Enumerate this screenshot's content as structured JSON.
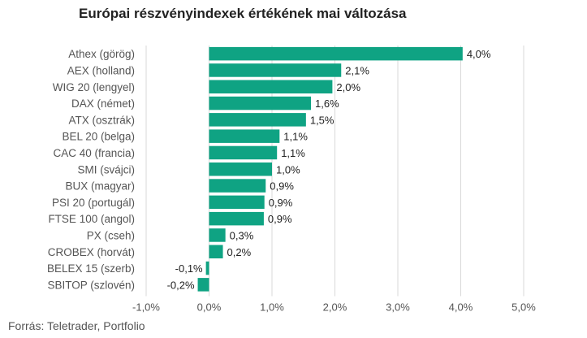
{
  "chart_data": {
    "type": "bar",
    "orientation": "horizontal",
    "title": "Európai részvényindexek értékének mai változása",
    "xlabel": "",
    "ylabel": "",
    "categories": [
      "Athex (görög)",
      "AEX (holland)",
      "WIG 20 (lengyel)",
      "DAX (német)",
      "ATX (osztrák)",
      "BEL 20 (belga)",
      "CAC 40 (francia)",
      "SMI (svájci)",
      "BUX (magyar)",
      "PSI 20 (portugál)",
      "FTSE 100 (angol)",
      "PX (cseh)",
      "CROBEX (horvát)",
      "BELEX 15 (szerb)",
      "SBITOP (szlovén)"
    ],
    "values": [
      4.03,
      2.1,
      1.96,
      1.62,
      1.54,
      1.12,
      1.08,
      1.0,
      0.9,
      0.88,
      0.87,
      0.26,
      0.22,
      -0.05,
      -0.18
    ],
    "value_labels": [
      "4,0%",
      "2,1%",
      "2,0%",
      "1,6%",
      "1,5%",
      "1,1%",
      "1,1%",
      "1,0%",
      "0,9%",
      "0,9%",
      "0,9%",
      "0,3%",
      "0,2%",
      "-0,1%",
      "-0,2%"
    ],
    "xlim": [
      -1,
      5
    ],
    "xticks": [
      -1,
      0,
      1,
      2,
      3,
      4,
      5
    ],
    "xtick_labels": [
      "-1,0%",
      "0,0%",
      "1,0%",
      "2,0%",
      "3,0%",
      "4,0%",
      "5,0%"
    ],
    "grid": true,
    "bar_color": "#0fa383",
    "legend": "none"
  },
  "footer": {
    "source": "Forrás: Teletrader, Portfolio"
  }
}
